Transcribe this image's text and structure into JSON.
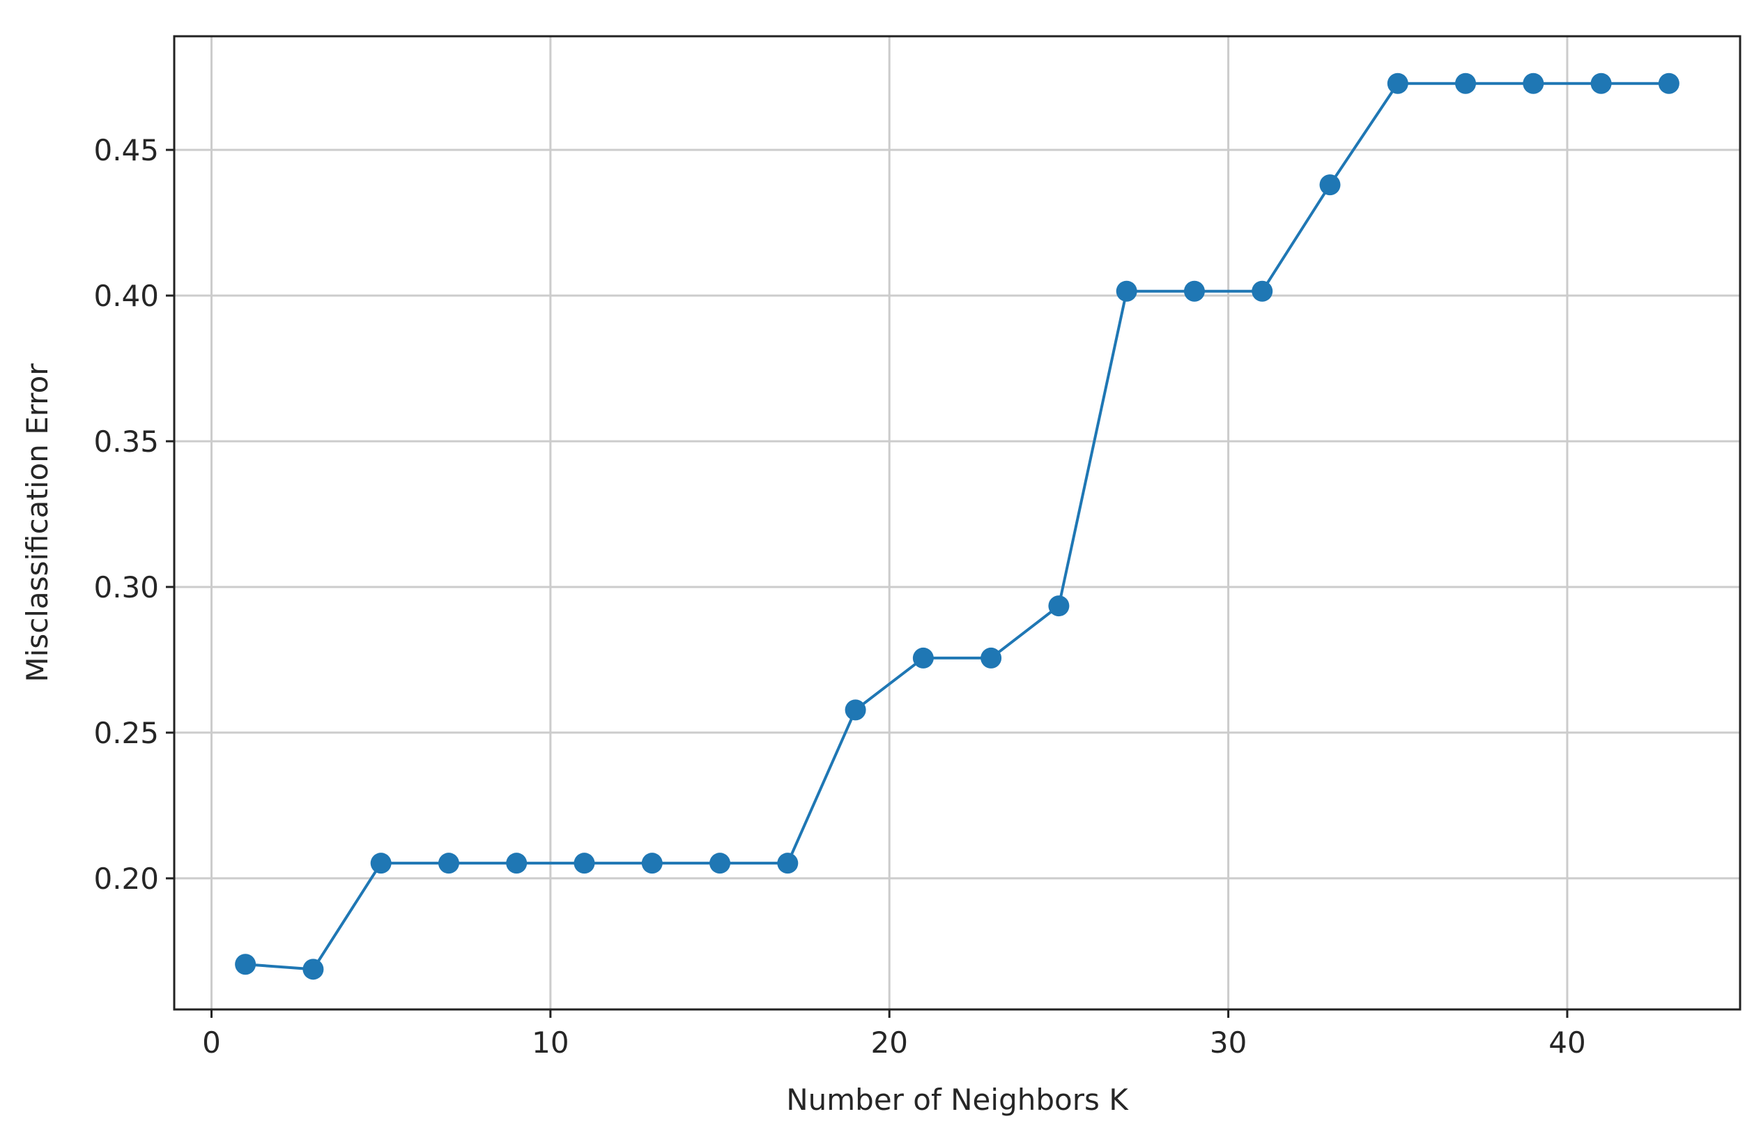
{
  "chart_data": {
    "type": "line",
    "title": "",
    "xlabel": "Number of Neighbors K",
    "ylabel": "Misclassification Error",
    "xlim": [
      -1.1,
      45.1
    ],
    "ylim": [
      0.155,
      0.489
    ],
    "xticks": [
      0,
      10,
      20,
      30,
      40
    ],
    "xtick_labels": [
      "0",
      "10",
      "20",
      "30",
      "40"
    ],
    "yticks": [
      0.2,
      0.25,
      0.3,
      0.35,
      0.4,
      0.45
    ],
    "ytick_labels": [
      "0.20",
      "0.25",
      "0.30",
      "0.35",
      "0.40",
      "0.45"
    ],
    "grid": true,
    "marker": "circle",
    "color": "#1f77b4",
    "series": [
      {
        "x": [
          1,
          3,
          5,
          7,
          9,
          11,
          13,
          15,
          17,
          19,
          21,
          23,
          25,
          27,
          29,
          31,
          33,
          35,
          37,
          39,
          41,
          43
        ],
        "values": [
          0.1705,
          0.1688,
          0.2052,
          0.2052,
          0.2052,
          0.2052,
          0.2052,
          0.2052,
          0.2052,
          0.2578,
          0.2756,
          0.2756,
          0.2935,
          0.4015,
          0.4015,
          0.4015,
          0.438,
          0.4728,
          0.4728,
          0.4728,
          0.4728,
          0.4728
        ]
      }
    ]
  }
}
